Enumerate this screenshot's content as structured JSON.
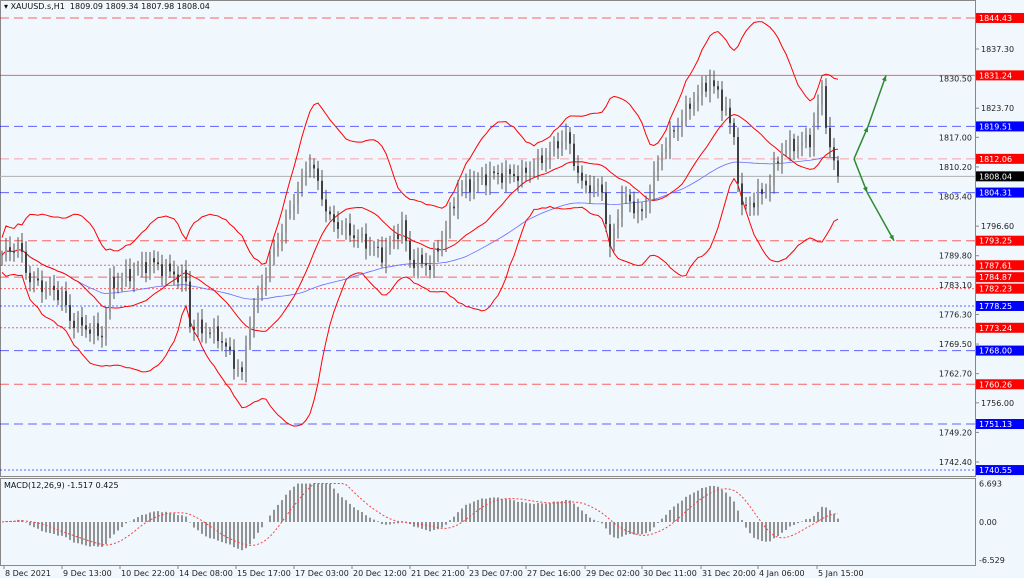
{
  "header": {
    "symbol": "XAUUSD.s,H1",
    "ohlc": "1809.09 1809.34 1807.98 1808.04"
  },
  "colors": {
    "background": "#f0f7fd",
    "bars": "#505050",
    "bollinger": "#ff0000",
    "ma": "#6a6aff",
    "arrows": "#2e8b2e",
    "red_label": "#ff0000",
    "blue_label": "#0000ff",
    "current_label": "#000000"
  },
  "chart_data": [
    {
      "type": "line",
      "title": "XAUUSD.s,H1",
      "ylim": [
        1738.5,
        1848.0
      ],
      "y_ticks": [
        "1837.30",
        "1830.50",
        "1823.70",
        "1817.00",
        "1810.20",
        "1803.40",
        "1796.60",
        "1789.80",
        "1783.10",
        "1776.30",
        "1769.50",
        "1762.70",
        "1756.00",
        "1749.20",
        "1742.40"
      ],
      "x_ticks": [
        {
          "bar": 0.5,
          "label": "8 Dec 2021"
        },
        {
          "bar": 15,
          "label": "9 Dec 13:00"
        },
        {
          "bar": 29.5,
          "label": "10 Dec 22:00"
        },
        {
          "bar": 44,
          "label": "14 Dec 08:00"
        },
        {
          "bar": 58.5,
          "label": "15 Dec 17:00"
        },
        {
          "bar": 73,
          "label": "17 Dec 03:00"
        },
        {
          "bar": 87.5,
          "label": "20 Dec 12:00"
        },
        {
          "bar": 102,
          "label": "21 Dec 21:00"
        },
        {
          "bar": 116.5,
          "label": "23 Dec 07:00"
        },
        {
          "bar": 131,
          "label": "27 Dec 16:00"
        },
        {
          "bar": 145.75,
          "label": "29 Dec 02:00"
        },
        {
          "bar": 160,
          "label": "30 Dec 11:00"
        },
        {
          "bar": 174.75,
          "label": "31 Dec 20:00"
        },
        {
          "bar": 189,
          "label": "4 Jan 06:00"
        },
        {
          "bar": 203.75,
          "label": "5 Jan 15:00"
        }
      ],
      "price_path": [
        [
          0,
          1789.97
        ],
        [
          4,
          1792.26
        ],
        [
          7,
          1784.22
        ],
        [
          15,
          1780.77
        ],
        [
          17,
          1775.03
        ],
        [
          25,
          1771.58
        ],
        [
          27,
          1783.07
        ],
        [
          37,
          1788.36
        ],
        [
          46,
          1784.22
        ],
        [
          47,
          1773.88
        ],
        [
          54,
          1771.58
        ],
        [
          60,
          1762.39
        ],
        [
          62,
          1775.03
        ],
        [
          67,
          1788.82
        ],
        [
          72,
          1800.31
        ],
        [
          77,
          1811.8
        ],
        [
          82,
          1798.01
        ],
        [
          90,
          1793.42
        ],
        [
          95,
          1789.97
        ],
        [
          100,
          1796.86
        ],
        [
          102,
          1788.82
        ],
        [
          107,
          1787.67
        ],
        [
          110,
          1793.42
        ],
        [
          114,
          1804.9
        ],
        [
          122,
          1808.35
        ],
        [
          130,
          1808.35
        ],
        [
          135,
          1811.8
        ],
        [
          141,
          1817.54
        ],
        [
          145,
          1806.05
        ],
        [
          150,
          1804.9
        ],
        [
          152,
          1791.11
        ],
        [
          155,
          1803.75
        ],
        [
          160,
          1799.16
        ],
        [
          165,
          1814.09
        ],
        [
          172,
          1824.43
        ],
        [
          177,
          1830.17
        ],
        [
          181,
          1823.28
        ],
        [
          183,
          1816.39
        ],
        [
          185,
          1800.31
        ],
        [
          191,
          1804.9
        ],
        [
          195,
          1814.09
        ],
        [
          202,
          1816.39
        ],
        [
          205,
          1827.88
        ],
        [
          207,
          1814.09
        ],
        [
          209,
          1808.04
        ]
      ],
      "levels": [
        {
          "price": 1844.43,
          "label": "1844.43",
          "color": "#ff0000",
          "style": "dashed"
        },
        {
          "price": 1831.24,
          "label": "1831.24",
          "color": "#ff0000",
          "style": "solid"
        },
        {
          "price": 1819.51,
          "label": "1819.51",
          "color": "#0000ff",
          "style": "dashed"
        },
        {
          "price": 1812.06,
          "label": "1812.06",
          "color": "#ff0000",
          "style": "dashed-light"
        },
        {
          "price": 1808.04,
          "label": "1808.04",
          "color": "#000000",
          "style": "current"
        },
        {
          "price": 1804.31,
          "label": "1804.31",
          "color": "#0000ff",
          "style": "dashed"
        },
        {
          "price": 1793.25,
          "label": "1793.25",
          "color": "#ff0000",
          "style": "dashed"
        },
        {
          "price": 1787.61,
          "label": "1787.61",
          "color": "#ff0000",
          "style": "dotted"
        },
        {
          "price": 1784.87,
          "label": "1784.87",
          "color": "#ff0000",
          "style": "dashed"
        },
        {
          "price": 1782.23,
          "label": "1782.23",
          "color": "#ff0000",
          "style": "dotted"
        },
        {
          "price": 1778.25,
          "label": "1778.25",
          "color": "#0000ff",
          "style": "dotted"
        },
        {
          "price": 1773.24,
          "label": "1773.24",
          "color": "#ff0000",
          "style": "dotted"
        },
        {
          "price": 1768.0,
          "label": "1768.00",
          "color": "#0000ff",
          "style": "dashed"
        },
        {
          "price": 1760.26,
          "label": "1760.26",
          "color": "#ff0000",
          "style": "dashed"
        },
        {
          "price": 1751.13,
          "label": "1751.13",
          "color": "#0000ff",
          "style": "dashed"
        },
        {
          "price": 1740.55,
          "label": "1740.55",
          "color": "#0000ff",
          "style": "dotted"
        }
      ],
      "arrows": [
        {
          "from": [
            213,
            1812.06
          ],
          "to": [
            216.5,
            1819.51
          ]
        },
        {
          "from": [
            216.5,
            1819.51
          ],
          "to": [
            221,
            1831.24
          ]
        },
        {
          "from": [
            213,
            1812.06
          ],
          "to": [
            216.3,
            1804.31
          ]
        },
        {
          "from": [
            216.3,
            1804.31
          ],
          "to": [
            223,
            1793.25
          ]
        }
      ]
    },
    {
      "type": "bar",
      "title": "MACD(12,26,9) -1.517 0.425",
      "ylim": [
        -6.529,
        6.693
      ],
      "y_ticks": [
        "6.693",
        "0.00",
        "-6.529"
      ]
    }
  ]
}
